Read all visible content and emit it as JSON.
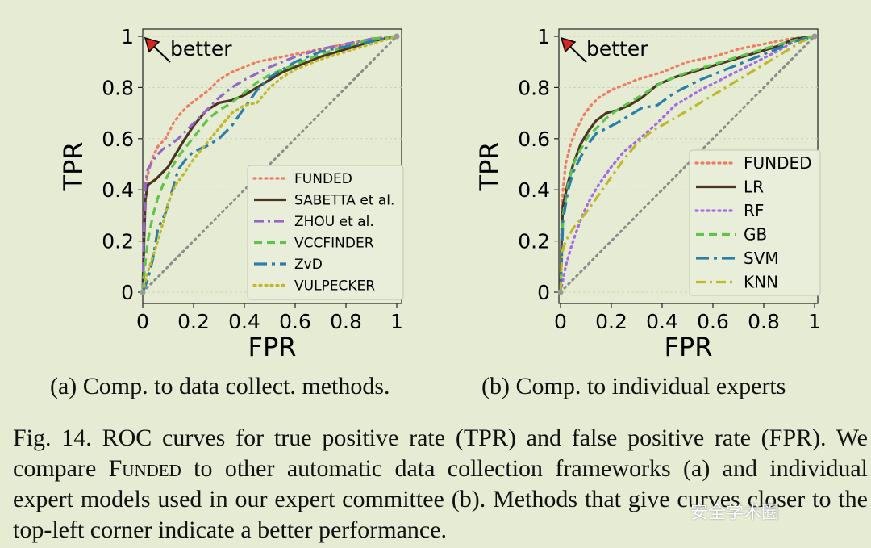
{
  "chart_data": [
    {
      "type": "line",
      "title": "",
      "xlabel": "FPR",
      "ylabel": "TPR",
      "xlim": [
        0,
        1
      ],
      "ylim": [
        0,
        1
      ],
      "xticks": [
        "0",
        "0.2",
        "0.4",
        "0.6",
        "0.8",
        "1"
      ],
      "yticks": [
        "0",
        "0.2",
        "0.4",
        "0.6",
        "0.8",
        "1"
      ],
      "annotation": "better",
      "legend_position": "lower-right",
      "series": [
        {
          "name": "FUNDED",
          "color": "#f07b62",
          "dash": "dotted",
          "x": [
            0,
            0.005,
            0.01,
            0.02,
            0.04,
            0.06,
            0.09,
            0.12,
            0.15,
            0.18,
            0.22,
            0.26,
            0.3,
            0.35,
            0.4,
            0.45,
            0.5,
            0.55,
            0.6,
            0.7,
            0.8,
            0.9,
            1.0
          ],
          "y": [
            0,
            0.22,
            0.4,
            0.46,
            0.53,
            0.57,
            0.6,
            0.66,
            0.7,
            0.73,
            0.76,
            0.79,
            0.83,
            0.86,
            0.88,
            0.9,
            0.91,
            0.92,
            0.93,
            0.95,
            0.97,
            0.99,
            1.0
          ]
        },
        {
          "name": "SABETTA et al.",
          "color": "#4a3522",
          "dash": "solid",
          "x": [
            0,
            0.005,
            0.01,
            0.02,
            0.05,
            0.08,
            0.1,
            0.13,
            0.16,
            0.2,
            0.25,
            0.3,
            0.35,
            0.4,
            0.45,
            0.5,
            0.55,
            0.6,
            0.7,
            0.8,
            0.9,
            1.0
          ],
          "y": [
            0,
            0.2,
            0.36,
            0.42,
            0.44,
            0.47,
            0.49,
            0.54,
            0.59,
            0.65,
            0.71,
            0.74,
            0.75,
            0.77,
            0.8,
            0.83,
            0.86,
            0.88,
            0.92,
            0.95,
            0.98,
            1.0
          ]
        },
        {
          "name": "ZHOU et al.",
          "color": "#9467c9",
          "dash": "dashdot",
          "x": [
            0,
            0.005,
            0.01,
            0.02,
            0.05,
            0.08,
            0.1,
            0.14,
            0.18,
            0.22,
            0.26,
            0.3,
            0.35,
            0.4,
            0.5,
            0.6,
            0.7,
            0.8,
            0.9,
            1.0
          ],
          "y": [
            0,
            0.26,
            0.42,
            0.48,
            0.53,
            0.56,
            0.57,
            0.6,
            0.64,
            0.68,
            0.72,
            0.76,
            0.8,
            0.83,
            0.88,
            0.92,
            0.95,
            0.97,
            0.99,
            1.0
          ]
        },
        {
          "name": "VCCFINDER",
          "color": "#5ec44a",
          "dash": "dashed",
          "x": [
            0,
            0.01,
            0.02,
            0.04,
            0.06,
            0.08,
            0.11,
            0.14,
            0.18,
            0.22,
            0.26,
            0.3,
            0.35,
            0.4,
            0.45,
            0.5,
            0.6,
            0.7,
            0.8,
            0.9,
            1.0
          ],
          "y": [
            0,
            0.12,
            0.2,
            0.3,
            0.37,
            0.42,
            0.48,
            0.53,
            0.58,
            0.63,
            0.68,
            0.71,
            0.74,
            0.78,
            0.82,
            0.85,
            0.89,
            0.93,
            0.96,
            0.99,
            1.0
          ]
        },
        {
          "name": "ZvD",
          "color": "#2a7eab",
          "dash": "longdash",
          "x": [
            0,
            0.02,
            0.04,
            0.06,
            0.09,
            0.12,
            0.14,
            0.17,
            0.2,
            0.25,
            0.3,
            0.35,
            0.4,
            0.45,
            0.5,
            0.55,
            0.6,
            0.7,
            0.8,
            0.9,
            1.0
          ],
          "y": [
            0,
            0.05,
            0.13,
            0.25,
            0.31,
            0.41,
            0.48,
            0.52,
            0.55,
            0.57,
            0.6,
            0.65,
            0.72,
            0.79,
            0.84,
            0.87,
            0.9,
            0.94,
            0.96,
            0.98,
            1.0
          ]
        },
        {
          "name": "VULPECKER",
          "color": "#bfb82a",
          "dash": "dotted",
          "x": [
            0,
            0.02,
            0.05,
            0.08,
            0.1,
            0.13,
            0.16,
            0.2,
            0.25,
            0.3,
            0.35,
            0.4,
            0.45,
            0.5,
            0.55,
            0.6,
            0.7,
            0.8,
            0.9,
            1.0
          ],
          "y": [
            0,
            0.08,
            0.17,
            0.27,
            0.35,
            0.42,
            0.46,
            0.52,
            0.58,
            0.64,
            0.7,
            0.73,
            0.74,
            0.8,
            0.84,
            0.87,
            0.91,
            0.94,
            0.97,
            1.0
          ]
        },
        {
          "name": "",
          "color": "#8c8c8c",
          "dash": "dotted",
          "x": [
            0,
            1
          ],
          "y": [
            0,
            1
          ]
        }
      ]
    },
    {
      "type": "line",
      "title": "",
      "xlabel": "FPR",
      "ylabel": "TPR",
      "xlim": [
        0,
        1
      ],
      "ylim": [
        0,
        1
      ],
      "xticks": [
        "0",
        "0.2",
        "0.4",
        "0.6",
        "0.8",
        "1"
      ],
      "yticks": [
        "0",
        "0.2",
        "0.4",
        "0.6",
        "0.8",
        "1"
      ],
      "annotation": "better",
      "legend_position": "right",
      "series": [
        {
          "name": "FUNDED",
          "color": "#f07b62",
          "dash": "dotted",
          "x": [
            0,
            0.005,
            0.01,
            0.02,
            0.04,
            0.06,
            0.09,
            0.12,
            0.15,
            0.2,
            0.25,
            0.3,
            0.4,
            0.5,
            0.6,
            0.7,
            0.8,
            0.9,
            1.0
          ],
          "y": [
            0,
            0.3,
            0.4,
            0.5,
            0.58,
            0.63,
            0.69,
            0.73,
            0.76,
            0.79,
            0.81,
            0.83,
            0.86,
            0.9,
            0.92,
            0.95,
            0.97,
            0.99,
            1.0
          ]
        },
        {
          "name": "LR",
          "color": "#4a3522",
          "dash": "solid",
          "x": [
            0,
            0.005,
            0.01,
            0.03,
            0.05,
            0.08,
            0.11,
            0.14,
            0.18,
            0.22,
            0.27,
            0.32,
            0.38,
            0.45,
            0.55,
            0.65,
            0.75,
            0.85,
            0.92,
            1.0
          ],
          "y": [
            0,
            0.25,
            0.34,
            0.43,
            0.5,
            0.58,
            0.63,
            0.67,
            0.7,
            0.71,
            0.73,
            0.76,
            0.81,
            0.84,
            0.87,
            0.9,
            0.93,
            0.96,
            0.99,
            1.0
          ]
        },
        {
          "name": "RF",
          "color": "#a36be8",
          "dash": "dotted",
          "x": [
            0,
            0.02,
            0.04,
            0.06,
            0.09,
            0.12,
            0.15,
            0.2,
            0.25,
            0.3,
            0.38,
            0.45,
            0.55,
            0.65,
            0.75,
            0.85,
            0.92,
            1.0
          ],
          "y": [
            0,
            0.1,
            0.17,
            0.23,
            0.31,
            0.37,
            0.42,
            0.49,
            0.55,
            0.59,
            0.66,
            0.73,
            0.79,
            0.84,
            0.89,
            0.94,
            0.98,
            1.0
          ]
        },
        {
          "name": "GB",
          "color": "#5ec44a",
          "dash": "dashed",
          "x": [
            0,
            0.01,
            0.03,
            0.05,
            0.08,
            0.11,
            0.14,
            0.18,
            0.22,
            0.27,
            0.32,
            0.4,
            0.5,
            0.6,
            0.7,
            0.8,
            0.9,
            1.0
          ],
          "y": [
            0,
            0.3,
            0.42,
            0.5,
            0.56,
            0.61,
            0.64,
            0.68,
            0.71,
            0.74,
            0.77,
            0.82,
            0.86,
            0.89,
            0.92,
            0.95,
            0.98,
            1.0
          ]
        },
        {
          "name": "SVM",
          "color": "#2a7eab",
          "dash": "longdash",
          "x": [
            0,
            0.01,
            0.03,
            0.05,
            0.08,
            0.11,
            0.14,
            0.18,
            0.22,
            0.27,
            0.32,
            0.38,
            0.45,
            0.55,
            0.65,
            0.75,
            0.85,
            0.92,
            1.0
          ],
          "y": [
            0,
            0.28,
            0.4,
            0.47,
            0.53,
            0.58,
            0.62,
            0.64,
            0.66,
            0.69,
            0.72,
            0.73,
            0.78,
            0.83,
            0.87,
            0.91,
            0.95,
            0.98,
            1.0
          ]
        },
        {
          "name": "KNN",
          "color": "#bfb82a",
          "dash": "dashdot",
          "x": [
            0,
            0.005,
            0.02,
            0.05,
            0.1,
            0.15,
            0.2,
            0.25,
            0.3,
            0.36,
            0.45,
            0.55,
            0.65,
            0.75,
            0.85,
            0.95,
            1.0
          ],
          "y": [
            0,
            0.15,
            0.2,
            0.25,
            0.31,
            0.38,
            0.45,
            0.52,
            0.58,
            0.63,
            0.68,
            0.74,
            0.8,
            0.86,
            0.92,
            0.98,
            1.0
          ]
        },
        {
          "name": "",
          "color": "#8c8c8c",
          "dash": "dotted",
          "x": [
            0,
            1
          ],
          "y": [
            0,
            1
          ]
        }
      ]
    }
  ],
  "subcaptions": {
    "a": "(a)  Comp. to data collect. methods.",
    "b": "(b)  Comp. to individual experts"
  },
  "caption": {
    "part1": "Fig. 14.    ROC curves for true positive rate (TPR) and false positive rate (FPR). We compare ",
    "funded": "Funded",
    "part2": " to other automatic data collection frameworks (a) and individual expert models used in our expert committee (b). Methods that give curves closer to the top-left corner indicate a better performance."
  },
  "watermark": "安全学术圈"
}
